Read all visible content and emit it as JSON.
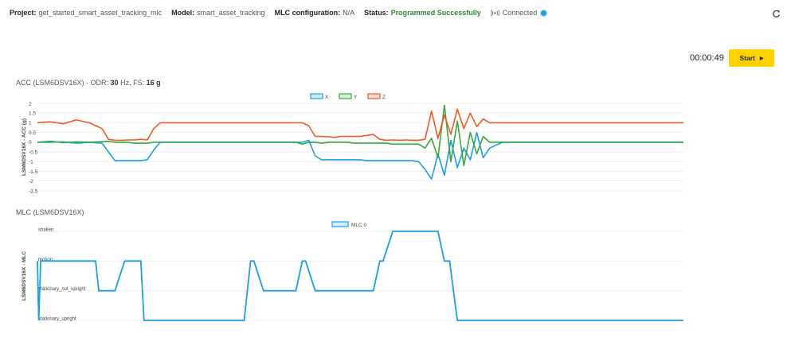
{
  "header": {
    "project_label": "Project:",
    "project_value": "get_started_smart_asset_tracking_mlc",
    "model_label": "Model:",
    "model_value": "smart_asset_tracking",
    "mlc_label": "MLC configuration:",
    "mlc_value": "N/A",
    "status_label": "Status:",
    "status_value": "Programmed Successfully",
    "connection": "Connected",
    "refresh_icon": "refresh-icon"
  },
  "controls": {
    "timer": "00:00:49",
    "start_label": "Start"
  },
  "colors": {
    "x": "#1a9ee6",
    "y": "#3aa83a",
    "z": "#f0582a",
    "mlc": "#1a9ee6",
    "start": "#ffd200",
    "status_ok": "#2e8b2e"
  },
  "acc_panel": {
    "title_prefix": "ACC (LSM6DSV16X) - ODR:",
    "odr": "30",
    "odr_unit": "Hz, FS:",
    "fs": "16 g"
  },
  "mlc_panel": {
    "title": "MLC (LSM6DSV16X)"
  },
  "chart_data": [
    {
      "type": "line",
      "ylabel": "LSM6DSV16X - ACC (g)",
      "ylim": [
        -2.5,
        2
      ],
      "yticks": [
        2,
        1.5,
        1,
        0.5,
        0,
        -0.5,
        -1,
        -1.5,
        -2,
        -2.5
      ],
      "ytick_labels": [
        "2",
        "1.5",
        "1",
        "0.5",
        "0",
        "-0.5",
        "-1",
        "-1.5",
        "-2",
        "-2.5"
      ],
      "grid": true,
      "legend": "top-center",
      "x": [
        0,
        2,
        4,
        6,
        8,
        10,
        11,
        12,
        13,
        14,
        15,
        16,
        17,
        18,
        19,
        20,
        21,
        22,
        23,
        24,
        25,
        26,
        27,
        28,
        29,
        30,
        31,
        32,
        33,
        34,
        35,
        36,
        37,
        38,
        39,
        40,
        41,
        42,
        43,
        44,
        45,
        46,
        47,
        48,
        49,
        50,
        51,
        52,
        53,
        54,
        55,
        56,
        57,
        58,
        59,
        60,
        61,
        62,
        63,
        64,
        65,
        66,
        67,
        68,
        69,
        70,
        72,
        74,
        76,
        78,
        80,
        82,
        84,
        86,
        88,
        90,
        92,
        94,
        96,
        98,
        100
      ],
      "series": [
        {
          "name": "X",
          "values": [
            0,
            0,
            0.02,
            -0.05,
            0,
            -0.05,
            -0.5,
            -0.95,
            -0.95,
            -0.95,
            -0.95,
            -0.95,
            -0.9,
            -0.4,
            0,
            0,
            0,
            0,
            0,
            0,
            0,
            0,
            0,
            0,
            0,
            0,
            0,
            0,
            0,
            0,
            0,
            0,
            0,
            0,
            0,
            0,
            0,
            0.1,
            -0.7,
            -0.9,
            -0.9,
            -0.9,
            -0.9,
            -0.9,
            -0.9,
            -0.9,
            -0.95,
            -0.95,
            -0.95,
            -0.95,
            -0.95,
            -0.95,
            -0.95,
            -0.95,
            -1.0,
            -1.4,
            -1.9,
            -0.6,
            -1.7,
            0.1,
            -1.3,
            -0.3,
            -0.9,
            0.5,
            -0.8,
            -0.3,
            0,
            0,
            0,
            0,
            0,
            0,
            0,
            0,
            0,
            0,
            0,
            0,
            0,
            0,
            0
          ]
        },
        {
          "name": "Y",
          "values": [
            0,
            0.05,
            -0.02,
            0.02,
            0,
            0.03,
            0.05,
            0,
            0,
            0,
            -0.05,
            -0.05,
            -0.05,
            0,
            0,
            0,
            0,
            0,
            0,
            0,
            0,
            0,
            0,
            0,
            0,
            0,
            0,
            0,
            0,
            0,
            0,
            0,
            0,
            0,
            0,
            0,
            -0.1,
            0,
            0,
            -0.05,
            0,
            0,
            0,
            0,
            -0.05,
            -0.05,
            -0.05,
            -0.05,
            -0.05,
            -0.05,
            -0.1,
            -0.1,
            -0.1,
            -0.1,
            -0.1,
            -0.3,
            0.2,
            -0.8,
            1.9,
            -1.0,
            1.1,
            -1.2,
            0.5,
            -0.6,
            0.3,
            0,
            0,
            0,
            0,
            0,
            0,
            0,
            0,
            0,
            0,
            0,
            0,
            0,
            0,
            0,
            0
          ]
        },
        {
          "name": "Z",
          "values": [
            1,
            1.05,
            0.95,
            1.15,
            1.0,
            0.7,
            0.15,
            0.1,
            0.1,
            0.12,
            0.12,
            0.15,
            0.12,
            0.7,
            1,
            1,
            1,
            1,
            1,
            1,
            1,
            1,
            1,
            1,
            1,
            1,
            1,
            1,
            1,
            1,
            1,
            1,
            1,
            1,
            1,
            1,
            1,
            0.85,
            0.3,
            0.3,
            0.28,
            0.25,
            0.3,
            0.3,
            0.3,
            0.3,
            0.35,
            0.4,
            0.15,
            0.1,
            0.12,
            0.1,
            0.12,
            0.1,
            0.1,
            0.15,
            1.6,
            0.2,
            1.4,
            0.4,
            1.7,
            0.7,
            1.5,
            0.8,
            1.2,
            1,
            1,
            1,
            1,
            1,
            1,
            1,
            1,
            1,
            1,
            1,
            1,
            1,
            1,
            1,
            1
          ]
        }
      ]
    },
    {
      "type": "line",
      "ylabel": "LSM6DSV16X - MLC",
      "categories": [
        "shaken",
        "motion",
        "stationary_not_upright",
        "stationary_upright"
      ],
      "legend": "top-center",
      "x": [
        0,
        0.2,
        0.5,
        4,
        9,
        9.5,
        12,
        13.5,
        14,
        16,
        16.5,
        18,
        32,
        33,
        33.5,
        35,
        40,
        41,
        41.5,
        43,
        52,
        53,
        53.5,
        55,
        55.6,
        62,
        63,
        63.8,
        65,
        65.6,
        100
      ],
      "series": [
        {
          "name": "MLC 0",
          "values": [
            "motion",
            "stationary_upright",
            "motion",
            "motion",
            "motion",
            "stationary_not_upright",
            "stationary_not_upright",
            "motion",
            "motion",
            "motion",
            "stationary_upright",
            "stationary_upright",
            "stationary_upright",
            "motion",
            "motion",
            "stationary_not_upright",
            "stationary_not_upright",
            "motion",
            "motion",
            "stationary_not_upright",
            "stationary_not_upright",
            "motion",
            "motion",
            "shaken",
            "shaken",
            "shaken",
            "motion",
            "motion",
            "stationary_upright",
            "stationary_upright",
            "stationary_upright"
          ]
        }
      ]
    }
  ]
}
